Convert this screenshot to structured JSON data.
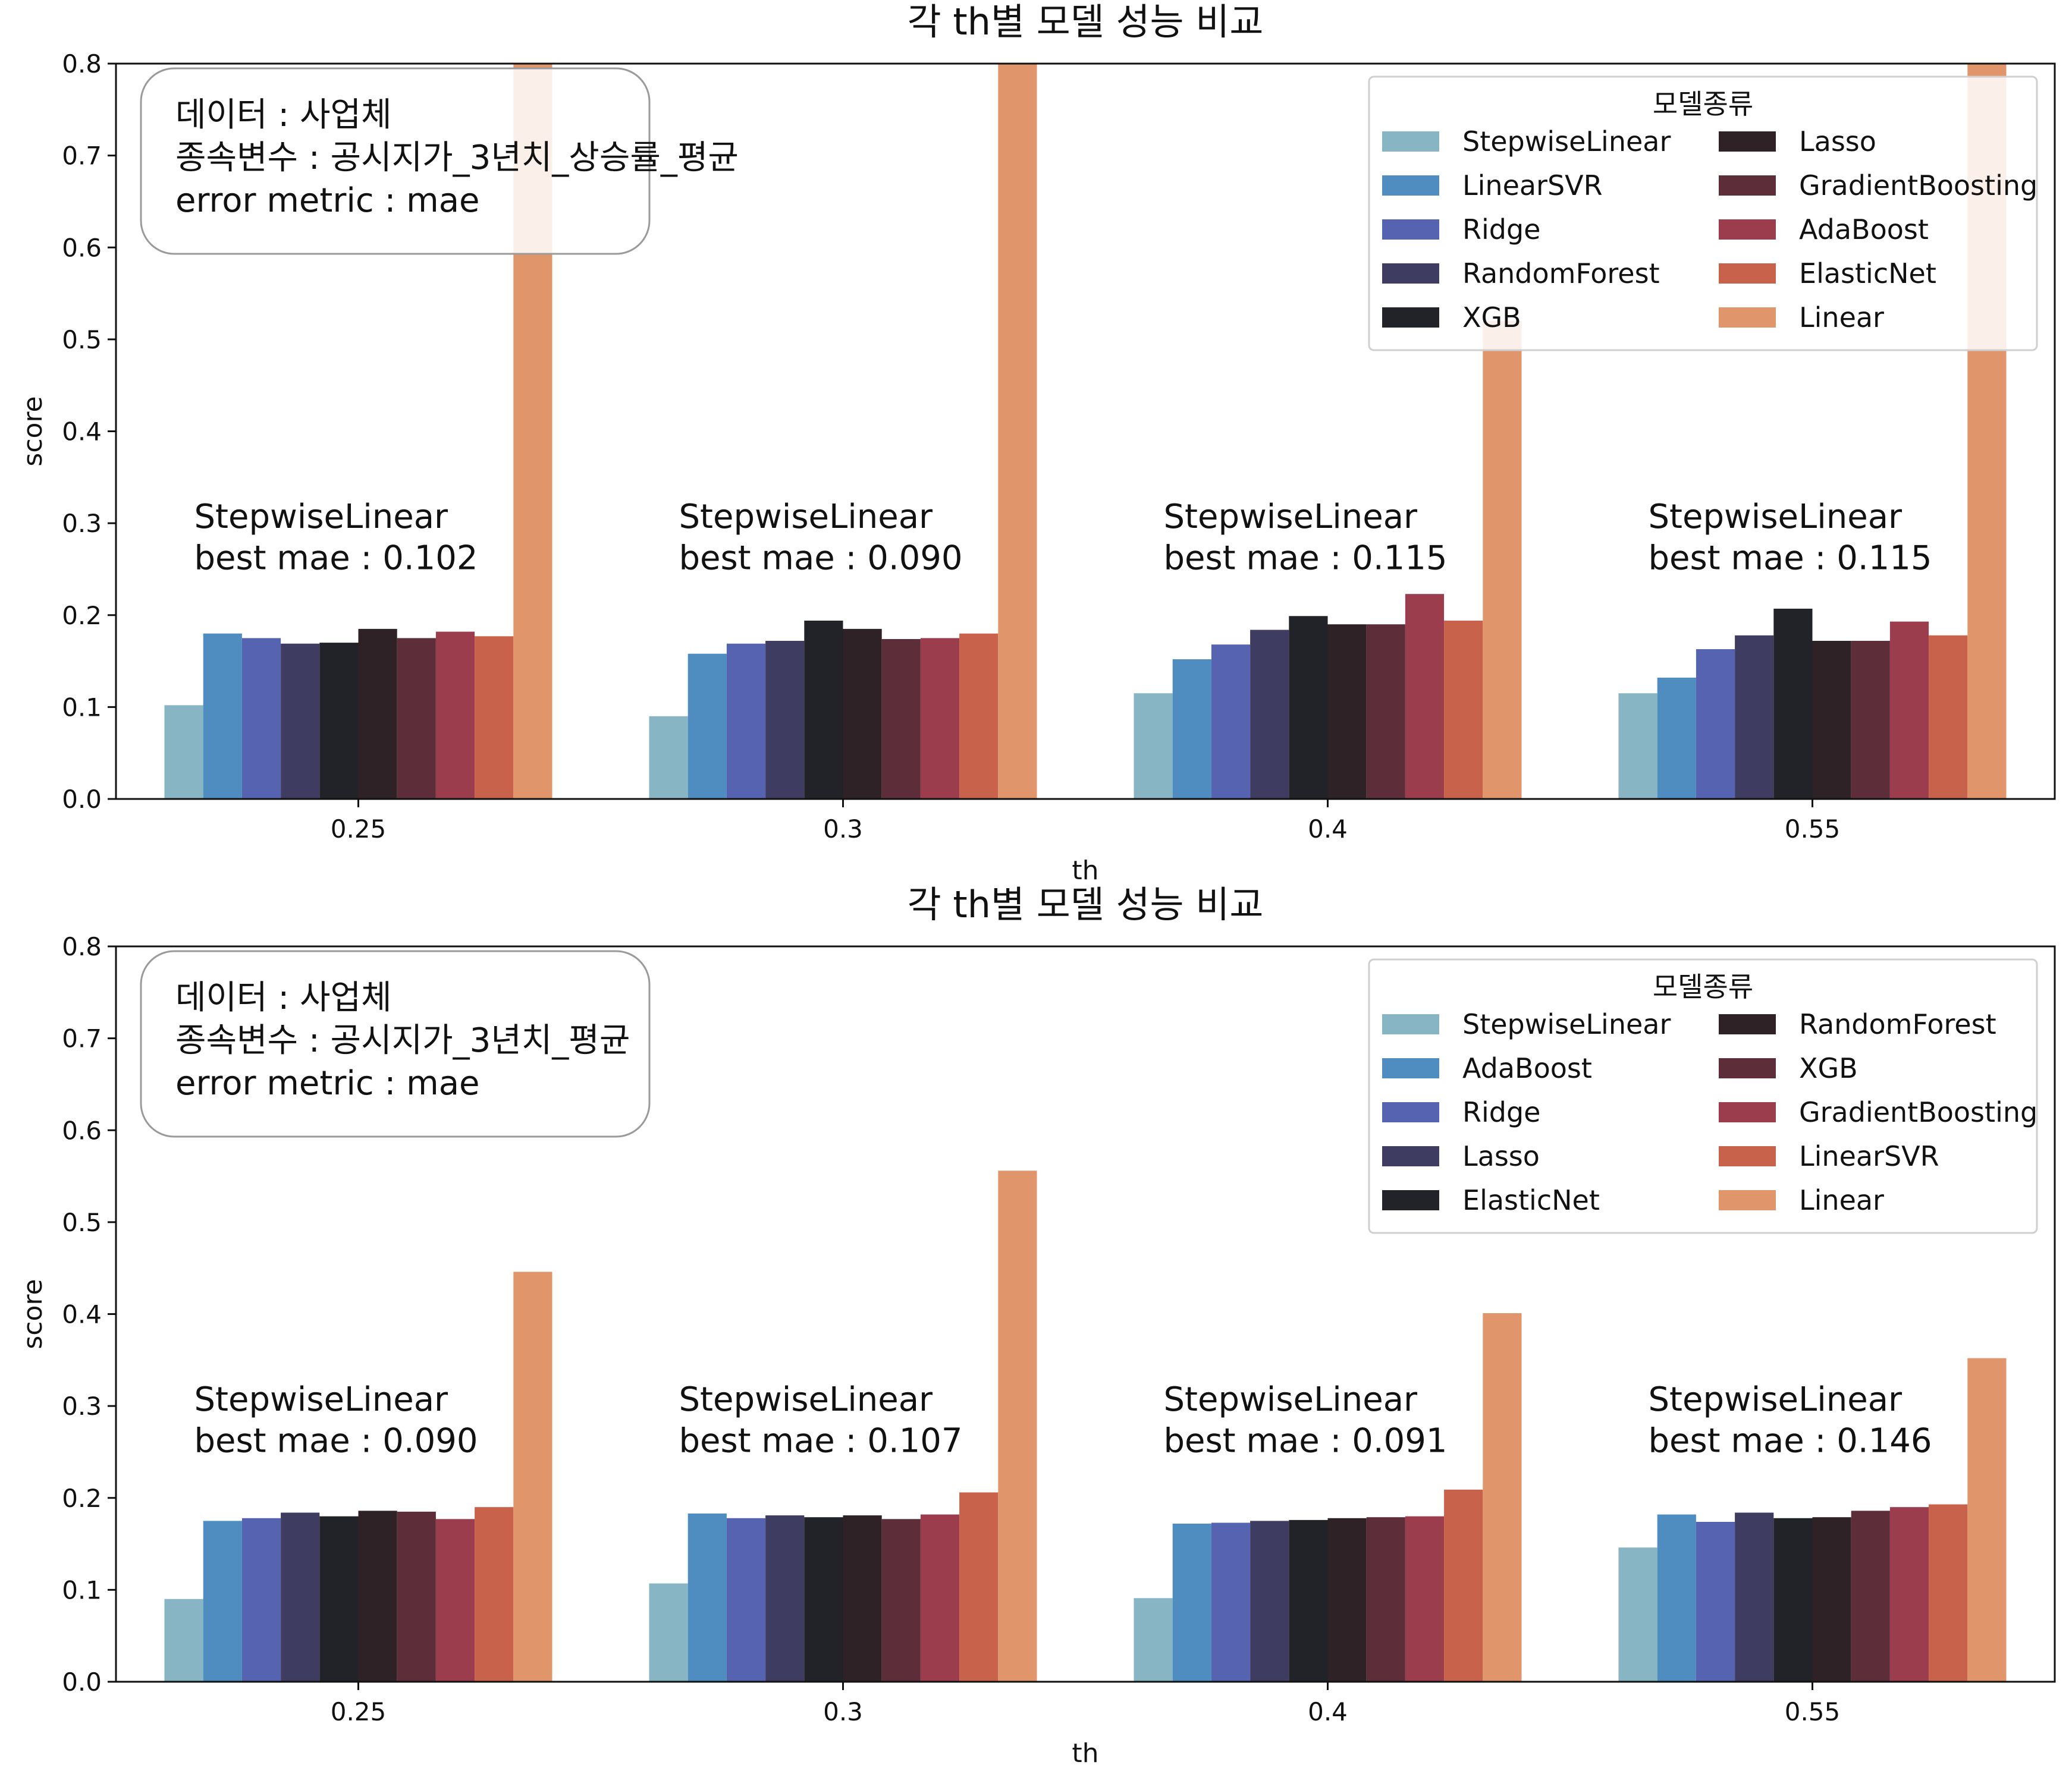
{
  "chart_data": [
    {
      "type": "bar",
      "title": "각 th별 모델 성능 비교",
      "xlabel": "th",
      "ylabel": "score",
      "ylim": [
        0,
        0.8
      ],
      "yticks": [
        "0.0",
        "0.1",
        "0.2",
        "0.3",
        "0.4",
        "0.5",
        "0.6",
        "0.7",
        "0.8"
      ],
      "categories": [
        "0.25",
        "0.3",
        "0.4",
        "0.55"
      ],
      "grid": false,
      "legend": {
        "title": "모델종류",
        "placement": "top-right"
      },
      "info_box": [
        "데이터 : 사업체",
        "종속변수 : 공시지가_3년치_상승률_평균",
        "error metric : mae"
      ],
      "annotations": [
        {
          "model": "StepwiseLinear",
          "text": "best mae : 0.102"
        },
        {
          "model": "StepwiseLinear",
          "text": "best mae : 0.090"
        },
        {
          "model": "StepwiseLinear",
          "text": "best mae : 0.115"
        },
        {
          "model": "StepwiseLinear",
          "text": "best mae : 0.115"
        }
      ],
      "series": [
        {
          "name": "StepwiseLinear",
          "color": "#87b5c4",
          "values": [
            0.102,
            0.09,
            0.115,
            0.115
          ]
        },
        {
          "name": "LinearSVR",
          "color": "#4f8dc0",
          "values": [
            0.18,
            0.158,
            0.152,
            0.132
          ]
        },
        {
          "name": "Ridge",
          "color": "#5563b0",
          "values": [
            0.175,
            0.169,
            0.168,
            0.163
          ]
        },
        {
          "name": "RandomForest",
          "color": "#3f3c62",
          "values": [
            0.169,
            0.172,
            0.184,
            0.178
          ]
        },
        {
          "name": "XGB",
          "color": "#222329",
          "values": [
            0.17,
            0.194,
            0.199,
            0.207
          ]
        },
        {
          "name": "Lasso",
          "color": "#2f2226",
          "values": [
            0.185,
            0.185,
            0.19,
            0.172
          ]
        },
        {
          "name": "GradientBoosting",
          "color": "#5d2e3a",
          "values": [
            0.175,
            0.174,
            0.19,
            0.172
          ]
        },
        {
          "name": "AdaBoost",
          "color": "#9b3d4d",
          "values": [
            0.182,
            0.175,
            0.223,
            0.193
          ]
        },
        {
          "name": "ElasticNet",
          "color": "#c8624a",
          "values": [
            0.177,
            0.18,
            0.194,
            0.178
          ]
        },
        {
          "name": "Linear",
          "color": "#e0966a",
          "values": [
            0.8,
            0.8,
            0.52,
            0.8
          ]
        }
      ]
    },
    {
      "type": "bar",
      "title": "각 th별 모델 성능 비교",
      "xlabel": "th",
      "ylabel": "score",
      "ylim": [
        0,
        0.8
      ],
      "yticks": [
        "0.0",
        "0.1",
        "0.2",
        "0.3",
        "0.4",
        "0.5",
        "0.6",
        "0.7",
        "0.8"
      ],
      "categories": [
        "0.25",
        "0.3",
        "0.4",
        "0.55"
      ],
      "grid": false,
      "legend": {
        "title": "모델종류",
        "placement": "top-right"
      },
      "info_box": [
        "데이터 : 사업체",
        "종속변수 : 공시지가_3년치_평균",
        "error metric : mae"
      ],
      "annotations": [
        {
          "model": "StepwiseLinear",
          "text": "best mae : 0.090"
        },
        {
          "model": "StepwiseLinear",
          "text": "best mae : 0.107"
        },
        {
          "model": "StepwiseLinear",
          "text": "best mae : 0.091"
        },
        {
          "model": "StepwiseLinear",
          "text": "best mae : 0.146"
        }
      ],
      "series": [
        {
          "name": "StepwiseLinear",
          "color": "#87b5c4",
          "values": [
            0.09,
            0.107,
            0.091,
            0.146
          ]
        },
        {
          "name": "AdaBoost",
          "color": "#4f8dc0",
          "values": [
            0.175,
            0.183,
            0.172,
            0.182
          ]
        },
        {
          "name": "Ridge",
          "color": "#5563b0",
          "values": [
            0.178,
            0.178,
            0.173,
            0.174
          ]
        },
        {
          "name": "Lasso",
          "color": "#3f3c62",
          "values": [
            0.184,
            0.181,
            0.175,
            0.184
          ]
        },
        {
          "name": "ElasticNet",
          "color": "#222329",
          "values": [
            0.18,
            0.179,
            0.176,
            0.178
          ]
        },
        {
          "name": "RandomForest",
          "color": "#2f2226",
          "values": [
            0.186,
            0.181,
            0.178,
            0.179
          ]
        },
        {
          "name": "XGB",
          "color": "#5d2e3a",
          "values": [
            0.185,
            0.177,
            0.179,
            0.186
          ]
        },
        {
          "name": "GradientBoosting",
          "color": "#9b3d4d",
          "values": [
            0.177,
            0.182,
            0.18,
            0.19
          ]
        },
        {
          "name": "LinearSVR",
          "color": "#c8624a",
          "values": [
            0.19,
            0.206,
            0.209,
            0.193
          ]
        },
        {
          "name": "Linear",
          "color": "#e0966a",
          "values": [
            0.446,
            0.556,
            0.401,
            0.352
          ]
        }
      ]
    }
  ]
}
